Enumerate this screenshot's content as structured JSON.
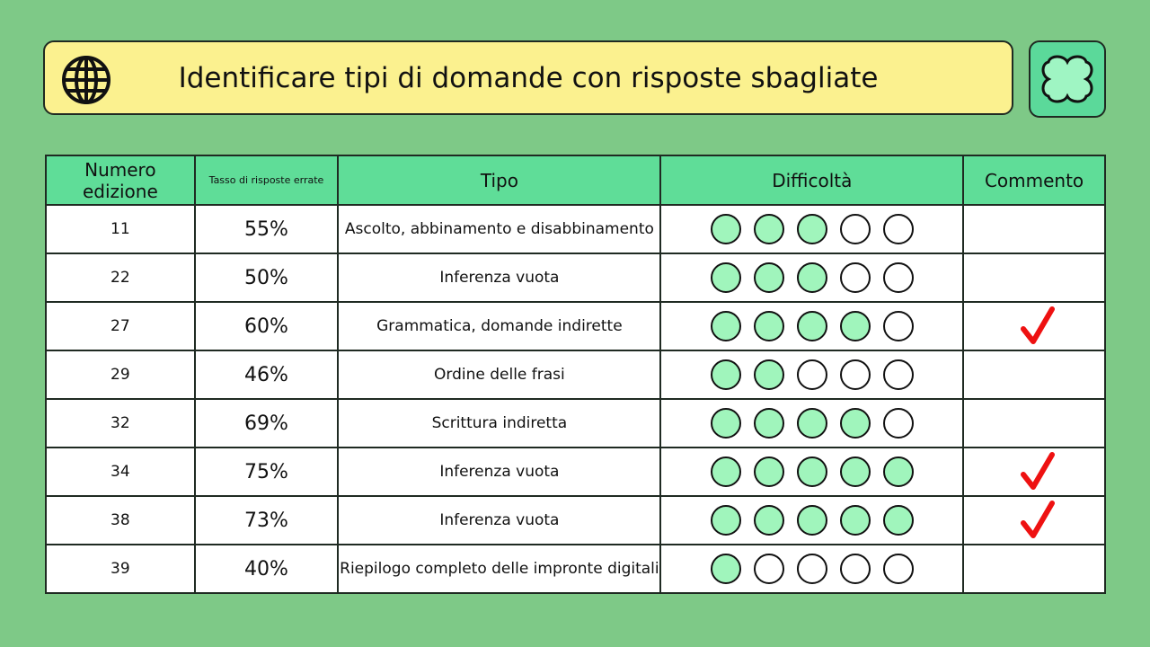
{
  "header": {
    "title": "Identificare tipi di domande con risposte sbagliate"
  },
  "table": {
    "columns": [
      "Numero edizione",
      "Tasso di risposte errate",
      "Tipo",
      "Difficoltà",
      "Commento"
    ],
    "difficulty_scale": 5,
    "rows": [
      {
        "edition": 11,
        "rate": "55%",
        "type": "Ascolto, abbinamento e disabbinamento",
        "difficulty": 3,
        "comment": false
      },
      {
        "edition": 22,
        "rate": "50%",
        "type": "Inferenza vuota",
        "difficulty": 3,
        "comment": false
      },
      {
        "edition": 27,
        "rate": "60%",
        "type": "Grammatica, domande indirette",
        "difficulty": 4,
        "comment": true
      },
      {
        "edition": 29,
        "rate": "46%",
        "type": "Ordine delle frasi",
        "difficulty": 2,
        "comment": false
      },
      {
        "edition": 32,
        "rate": "69%",
        "type": "Scrittura indiretta",
        "difficulty": 4,
        "comment": false
      },
      {
        "edition": 34,
        "rate": "75%",
        "type": "Inferenza vuota",
        "difficulty": 5,
        "comment": true
      },
      {
        "edition": 38,
        "rate": "73%",
        "type": "Inferenza vuota",
        "difficulty": 5,
        "comment": true
      },
      {
        "edition": 39,
        "rate": "40%",
        "type": "Riepilogo completo delle impronte digitali",
        "difficulty": 1,
        "comment": false
      }
    ]
  }
}
